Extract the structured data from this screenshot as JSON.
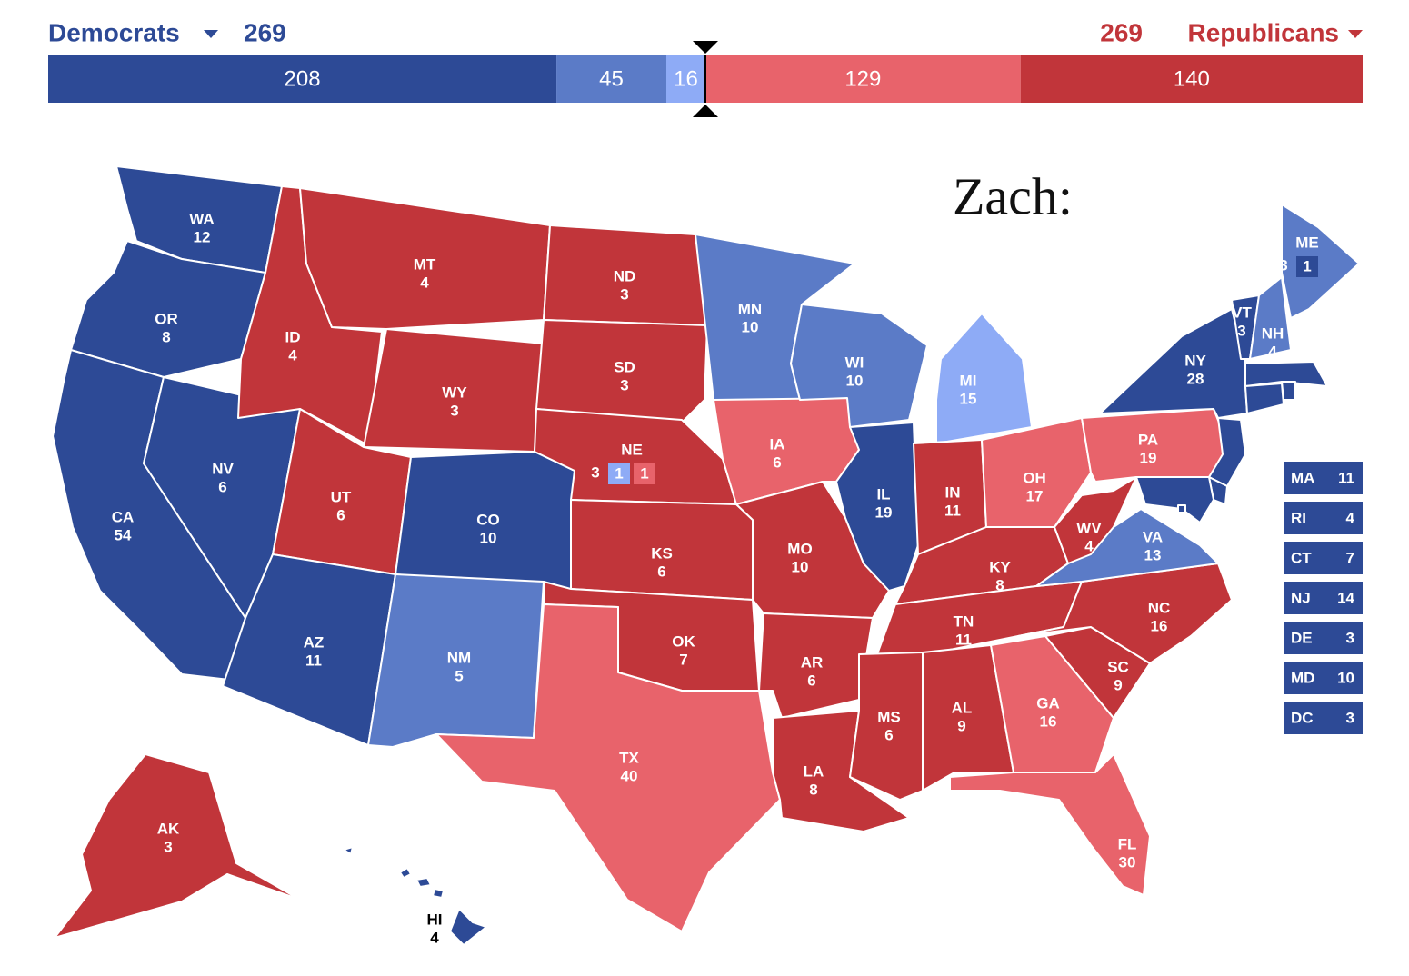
{
  "header": {
    "dem_label": "Democrats",
    "dem_total": 269,
    "rep_total": 269,
    "rep_label": "Republicans"
  },
  "bar": [
    {
      "value": 208,
      "color": "#2d4a96"
    },
    {
      "value": 45,
      "color": "#5b7bc7"
    },
    {
      "value": 16,
      "color": "#8eabf6"
    },
    {
      "value": 129,
      "color": "#e8636b"
    },
    {
      "value": 140,
      "color": "#c1353a"
    }
  ],
  "annotation": "Zach:",
  "states": [
    {
      "abbr": "WA",
      "votes": 12,
      "color": "#2d4a96"
    },
    {
      "abbr": "OR",
      "votes": 8,
      "color": "#2d4a96"
    },
    {
      "abbr": "CA",
      "votes": 54,
      "color": "#2d4a96"
    },
    {
      "abbr": "NV",
      "votes": 6,
      "color": "#2d4a96"
    },
    {
      "abbr": "ID",
      "votes": 4,
      "color": "#c1353a"
    },
    {
      "abbr": "MT",
      "votes": 4,
      "color": "#c1353a"
    },
    {
      "abbr": "WY",
      "votes": 3,
      "color": "#c1353a"
    },
    {
      "abbr": "UT",
      "votes": 6,
      "color": "#c1353a"
    },
    {
      "abbr": "CO",
      "votes": 10,
      "color": "#2d4a96"
    },
    {
      "abbr": "AZ",
      "votes": 11,
      "color": "#2d4a96"
    },
    {
      "abbr": "NM",
      "votes": 5,
      "color": "#5b7bc7"
    },
    {
      "abbr": "ND",
      "votes": 3,
      "color": "#c1353a"
    },
    {
      "abbr": "SD",
      "votes": 3,
      "color": "#c1353a"
    },
    {
      "abbr": "NE",
      "votes": 3,
      "color": "#c1353a",
      "districts": [
        {
          "votes": 1,
          "color": "#8eabf6"
        },
        {
          "votes": 1,
          "color": "#e8636b"
        }
      ]
    },
    {
      "abbr": "KS",
      "votes": 6,
      "color": "#c1353a"
    },
    {
      "abbr": "OK",
      "votes": 7,
      "color": "#c1353a"
    },
    {
      "abbr": "TX",
      "votes": 40,
      "color": "#e8636b"
    },
    {
      "abbr": "MN",
      "votes": 10,
      "color": "#5b7bc7"
    },
    {
      "abbr": "IA",
      "votes": 6,
      "color": "#e8636b"
    },
    {
      "abbr": "MO",
      "votes": 10,
      "color": "#c1353a"
    },
    {
      "abbr": "AR",
      "votes": 6,
      "color": "#c1353a"
    },
    {
      "abbr": "LA",
      "votes": 8,
      "color": "#c1353a"
    },
    {
      "abbr": "WI",
      "votes": 10,
      "color": "#5b7bc7"
    },
    {
      "abbr": "IL",
      "votes": 19,
      "color": "#2d4a96"
    },
    {
      "abbr": "MI",
      "votes": 15,
      "color": "#8eabf6"
    },
    {
      "abbr": "IN",
      "votes": 11,
      "color": "#c1353a"
    },
    {
      "abbr": "OH",
      "votes": 17,
      "color": "#e8636b"
    },
    {
      "abbr": "KY",
      "votes": 8,
      "color": "#c1353a"
    },
    {
      "abbr": "TN",
      "votes": 11,
      "color": "#c1353a"
    },
    {
      "abbr": "MS",
      "votes": 6,
      "color": "#c1353a"
    },
    {
      "abbr": "AL",
      "votes": 9,
      "color": "#c1353a"
    },
    {
      "abbr": "GA",
      "votes": 16,
      "color": "#e8636b"
    },
    {
      "abbr": "FL",
      "votes": 30,
      "color": "#e8636b"
    },
    {
      "abbr": "SC",
      "votes": 9,
      "color": "#c1353a"
    },
    {
      "abbr": "NC",
      "votes": 16,
      "color": "#c1353a"
    },
    {
      "abbr": "VA",
      "votes": 13,
      "color": "#5b7bc7"
    },
    {
      "abbr": "WV",
      "votes": 4,
      "color": "#c1353a"
    },
    {
      "abbr": "PA",
      "votes": 19,
      "color": "#e8636b"
    },
    {
      "abbr": "NY",
      "votes": 28,
      "color": "#2d4a96"
    },
    {
      "abbr": "ME",
      "votes": 3,
      "color": "#5b7bc7",
      "districts": [
        {
          "votes": 1,
          "color": "#2d4a96"
        }
      ]
    },
    {
      "abbr": "VT",
      "votes": 3,
      "color": "#2d4a96"
    },
    {
      "abbr": "NH",
      "votes": 4,
      "color": "#5b7bc7"
    },
    {
      "abbr": "HI",
      "votes": 4,
      "color": "#2d4a96"
    },
    {
      "abbr": "AK",
      "votes": 3,
      "color": "#c1353a"
    }
  ],
  "small_states": [
    {
      "abbr": "MA",
      "votes": 11,
      "color": "#2d4a96"
    },
    {
      "abbr": "RI",
      "votes": 4,
      "color": "#2d4a96"
    },
    {
      "abbr": "CT",
      "votes": 7,
      "color": "#2d4a96"
    },
    {
      "abbr": "NJ",
      "votes": 14,
      "color": "#2d4a96"
    },
    {
      "abbr": "DE",
      "votes": 3,
      "color": "#2d4a96"
    },
    {
      "abbr": "MD",
      "votes": 10,
      "color": "#2d4a96"
    },
    {
      "abbr": "DC",
      "votes": 3,
      "color": "#2d4a96"
    }
  ]
}
